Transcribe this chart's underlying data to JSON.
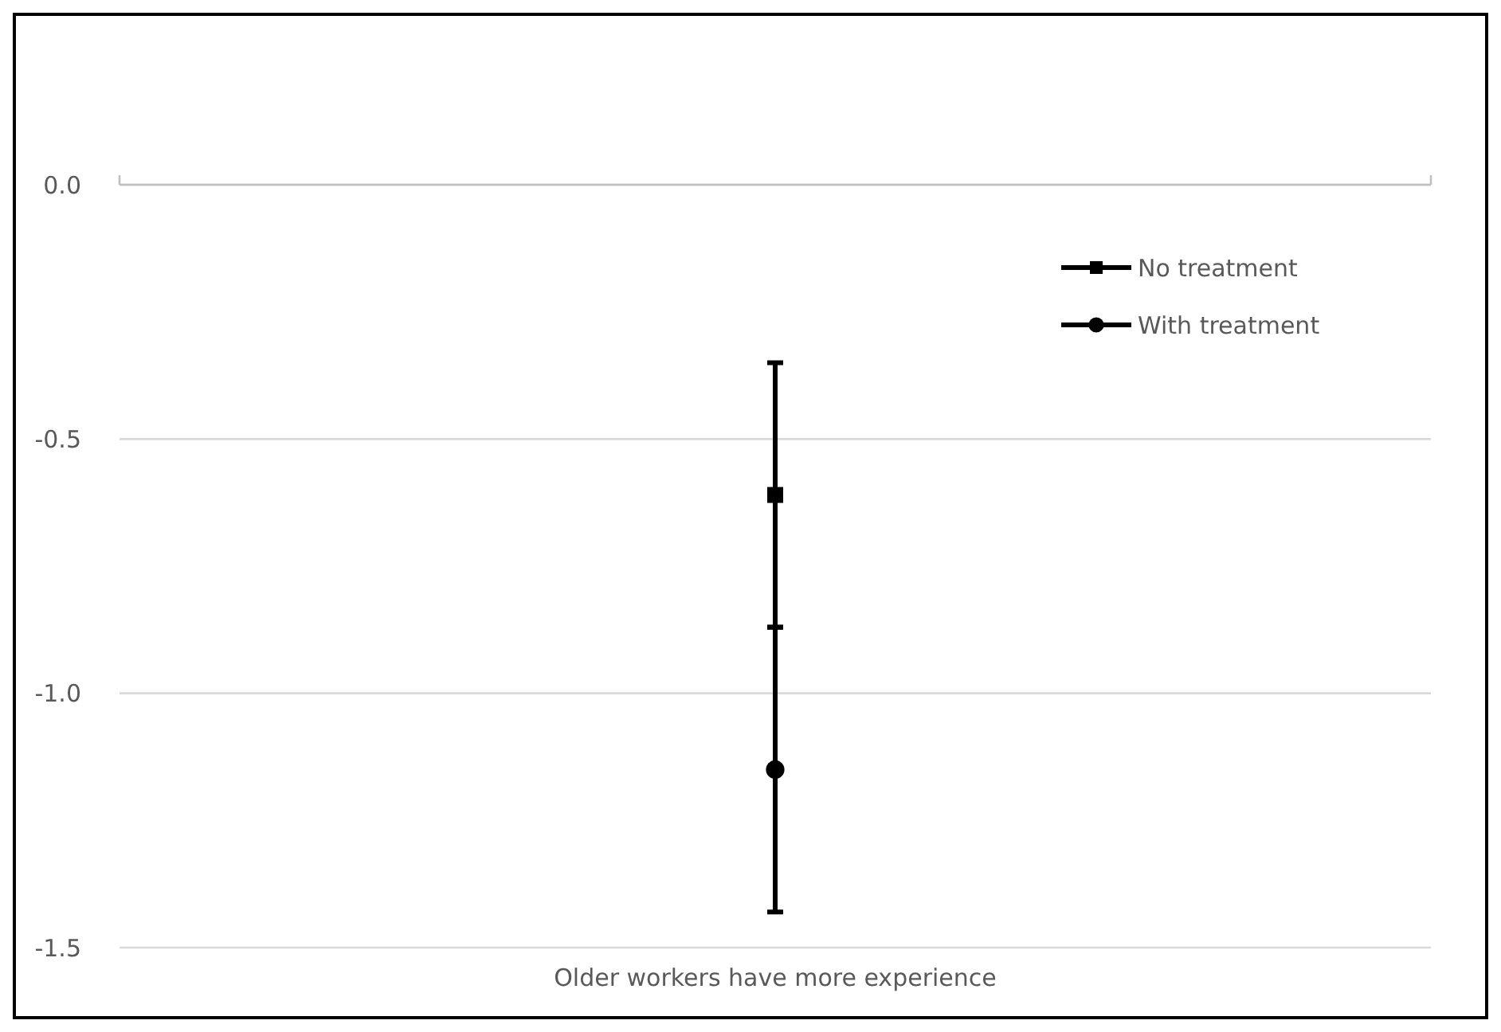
{
  "chart_data": {
    "type": "line",
    "categories": [
      "Older workers have more experience"
    ],
    "series": [
      {
        "name": "No treatment",
        "color": "#000000",
        "values": [
          -0.61
        ],
        "errors": [
          0.26
        ],
        "marker": "square"
      },
      {
        "name": "With treatment",
        "color": "#000000",
        "values": [
          -1.15
        ],
        "errors": [
          0.28
        ],
        "marker": "circle"
      }
    ],
    "ylim": [
      -1.5,
      0
    ],
    "yticks": [
      {
        "value": 0,
        "label": "0.0"
      },
      -0.5,
      {
        "value": -1,
        "label": "-1.0"
      },
      -1.5
    ],
    "grid": "y",
    "legend": "top right",
    "line_style": "solid"
  }
}
